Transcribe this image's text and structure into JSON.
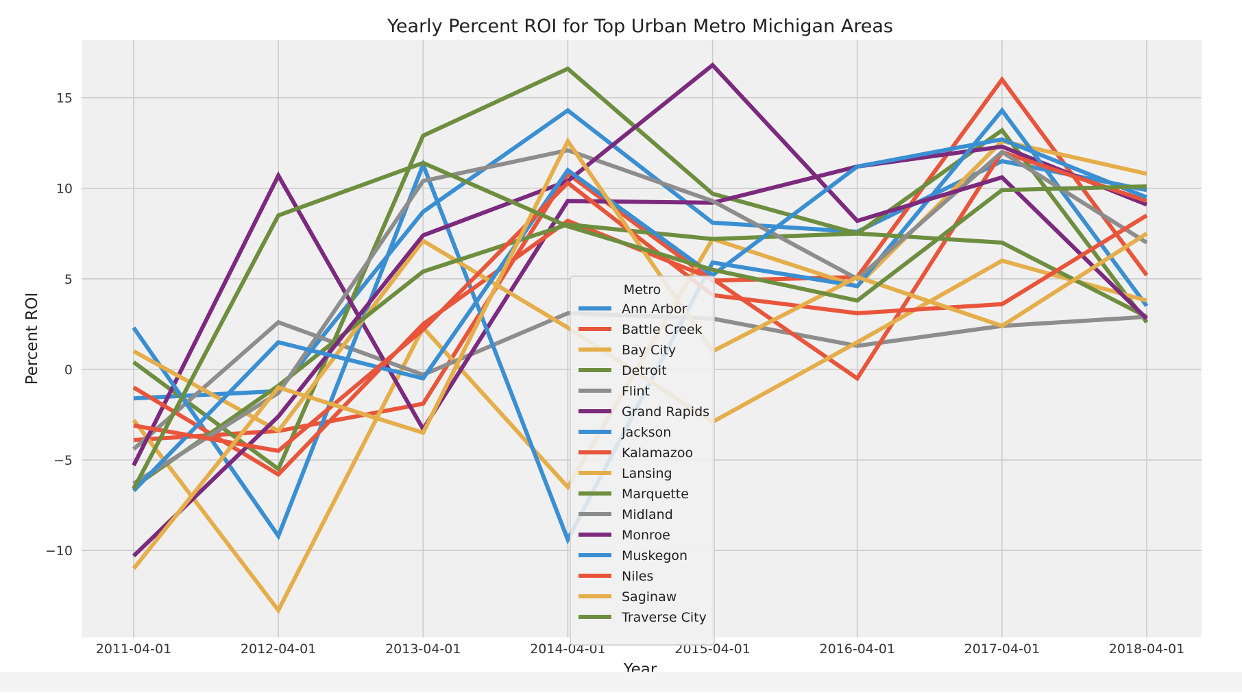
{
  "chart_data": {
    "type": "line",
    "title": "Yearly Percent ROI for Top Urban Metro Michigan Areas",
    "xlabel": "Year",
    "ylabel": "Percent ROI",
    "categories": [
      "2011-04-01",
      "2012-04-01",
      "2013-04-01",
      "2014-04-01",
      "2015-04-01",
      "2016-04-01",
      "2017-04-01",
      "2018-04-01"
    ],
    "y_ticks": [
      -10,
      -5,
      0,
      5,
      10,
      15
    ],
    "y_tick_labels": [
      "−10",
      "−5",
      "0",
      "5",
      "10",
      "15"
    ],
    "ylim": [
      -14.8,
      18.2
    ],
    "grid": true,
    "legend": {
      "title": "Metro",
      "placement": "center"
    },
    "colors": {
      "background": "#f0f0f0",
      "grid": "#cbcbcb",
      "figure": "#ffffff"
    },
    "series": [
      {
        "name": "Ann Arbor",
        "color": "#3a8fd3",
        "values": [
          -1.6,
          -1.2,
          8.7,
          14.3,
          8.1,
          7.6,
          11.5,
          9.9
        ]
      },
      {
        "name": "Battle Creek",
        "color": "#e8553b",
        "values": [
          -3.9,
          -3.4,
          -1.9,
          10.8,
          4.9,
          5.1,
          16.0,
          5.2
        ]
      },
      {
        "name": "Bay City",
        "color": "#e5ae4a",
        "values": [
          -2.8,
          -13.3,
          2.3,
          -6.5,
          7.2,
          4.6,
          12.6,
          10.8
        ]
      },
      {
        "name": "Detroit",
        "color": "#6e8e3f",
        "values": [
          0.4,
          -5.5,
          12.9,
          16.6,
          9.7,
          7.5,
          13.2,
          2.6
        ]
      },
      {
        "name": "Flint",
        "color": "#8d8d8d",
        "values": [
          -4.4,
          2.6,
          -0.3,
          3.1,
          2.8,
          1.3,
          2.4,
          2.9
        ]
      },
      {
        "name": "Grand Rapids",
        "color": "#7b2a7d",
        "values": [
          -5.3,
          10.7,
          -3.3,
          9.3,
          9.2,
          11.2,
          12.3,
          9.1
        ]
      },
      {
        "name": "Jackson",
        "color": "#3a8fd3",
        "values": [
          2.3,
          -9.2,
          11.3,
          -9.4,
          5.9,
          4.6,
          14.3,
          3.5
        ]
      },
      {
        "name": "Kalamazoo",
        "color": "#e8553b",
        "values": [
          -1.0,
          -5.8,
          2.5,
          8.2,
          5.0,
          -0.5,
          12.0,
          9.3
        ]
      },
      {
        "name": "Lansing",
        "color": "#e5ae4a",
        "values": [
          1.0,
          -3.4,
          7.1,
          2.3,
          -2.9,
          1.5,
          6.0,
          3.8
        ]
      },
      {
        "name": "Marquette",
        "color": "#6e8e3f",
        "values": [
          -6.5,
          -0.9,
          5.4,
          8.0,
          7.2,
          7.5,
          7.0,
          2.9
        ]
      },
      {
        "name": "Midland",
        "color": "#8d8d8d",
        "values": [
          -6.3,
          -1.3,
          10.4,
          12.1,
          9.3,
          5.0,
          12.0,
          7.0
        ]
      },
      {
        "name": "Monroe",
        "color": "#7b2a7d",
        "values": [
          -10.3,
          -2.6,
          7.4,
          10.4,
          16.8,
          8.2,
          10.6,
          2.8
        ]
      },
      {
        "name": "Muskegon",
        "color": "#3a8fd3",
        "values": [
          -6.7,
          1.5,
          -0.5,
          11.0,
          5.2,
          11.2,
          12.7,
          9.5
        ]
      },
      {
        "name": "Niles",
        "color": "#e8553b",
        "values": [
          -3.1,
          -4.5,
          2.2,
          10.3,
          4.1,
          3.1,
          3.6,
          8.5
        ]
      },
      {
        "name": "Saginaw",
        "color": "#e5ae4a",
        "values": [
          -11.0,
          -1.0,
          -3.5,
          12.6,
          1.0,
          5.1,
          2.4,
          7.5
        ]
      },
      {
        "name": "Traverse City",
        "color": "#6e8e3f",
        "values": [
          -6.6,
          8.5,
          11.4,
          7.9,
          5.5,
          3.8,
          9.9,
          10.1
        ]
      }
    ]
  }
}
